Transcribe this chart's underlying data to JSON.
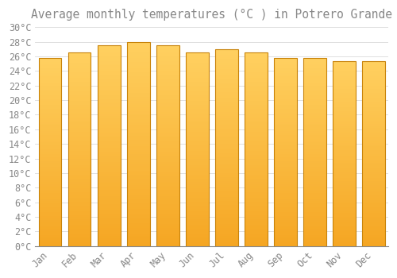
{
  "title": "Average monthly temperatures (°C ) in Potrero Grande",
  "months": [
    "Jan",
    "Feb",
    "Mar",
    "Apr",
    "May",
    "Jun",
    "Jul",
    "Aug",
    "Sep",
    "Oct",
    "Nov",
    "Dec"
  ],
  "values": [
    25.8,
    26.5,
    27.5,
    28.0,
    27.5,
    26.5,
    27.0,
    26.5,
    25.8,
    25.8,
    25.3,
    25.3
  ],
  "bar_color_dark": "#F5A623",
  "bar_color_light": "#FFD060",
  "bar_edge_color": "#C8830A",
  "background_color": "#FFFFFF",
  "grid_color": "#E0E0E0",
  "text_color": "#888888",
  "ylim": [
    0,
    30
  ],
  "ytick_step": 2,
  "title_fontsize": 10.5,
  "tick_fontsize": 8.5
}
